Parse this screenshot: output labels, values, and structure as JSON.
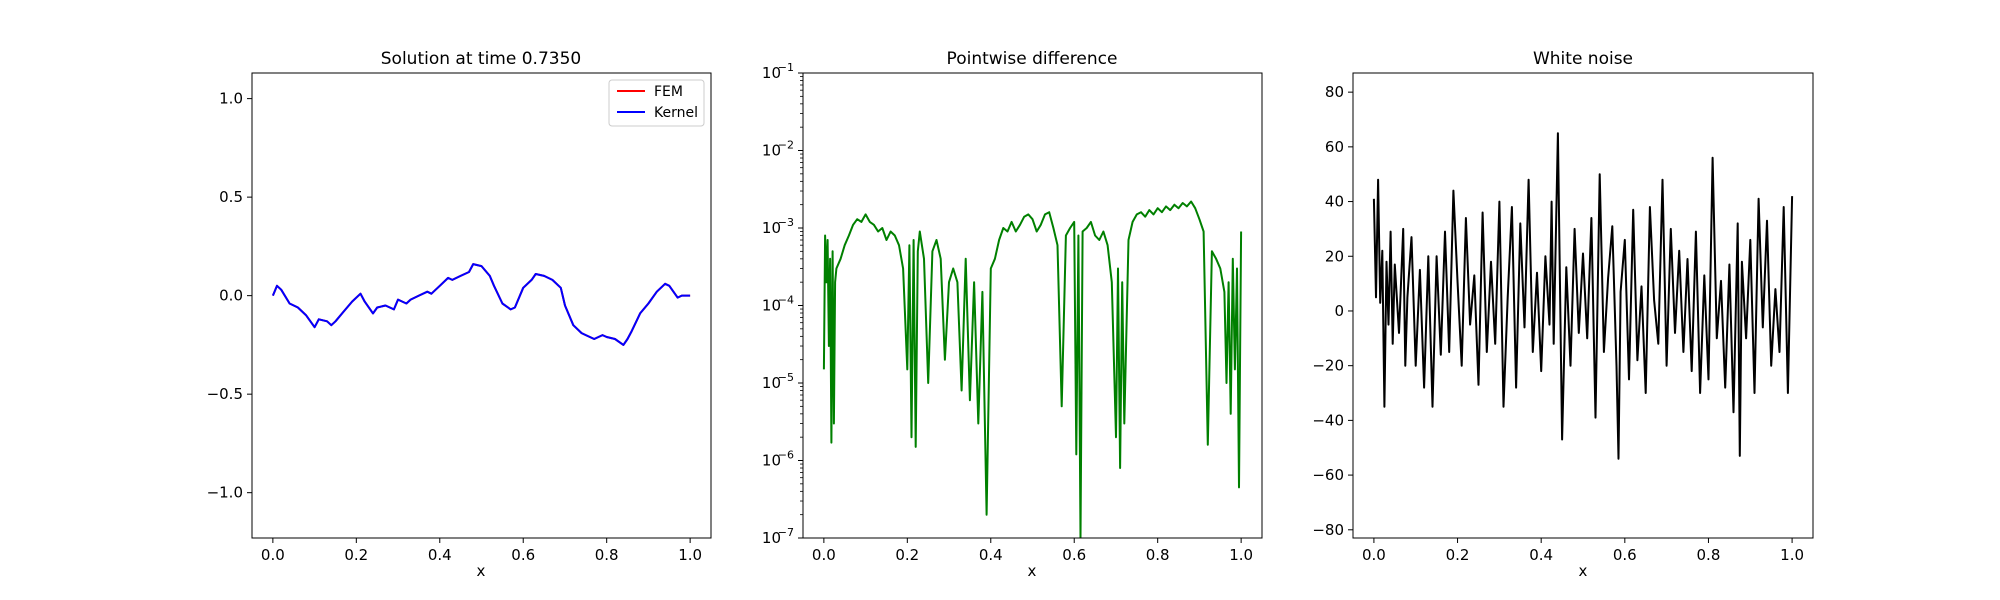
{
  "chart_data": [
    {
      "type": "line",
      "title": "Solution at time 0.7350",
      "xlabel": "x",
      "ylabel": "",
      "xlim": [
        -0.05,
        1.05
      ],
      "ylim": [
        -1.23,
        1.13
      ],
      "xticks": [
        0.0,
        0.2,
        0.4,
        0.6,
        0.8,
        1.0
      ],
      "xtick_labels": [
        "0.0",
        "0.2",
        "0.4",
        "0.6",
        "0.8",
        "1.0"
      ],
      "yticks": [
        -1.0,
        -0.5,
        0.0,
        0.5,
        1.0
      ],
      "ytick_labels": [
        "−1.0",
        "−0.5",
        "0.0",
        "0.5",
        "1.0"
      ],
      "legend": "top-right",
      "grid": false,
      "series": [
        {
          "name": "FEM",
          "color": "#ff0000",
          "x": [
            0.0,
            0.01,
            0.02,
            0.04,
            0.06,
            0.08,
            0.1,
            0.11,
            0.13,
            0.14,
            0.15,
            0.17,
            0.19,
            0.21,
            0.22,
            0.24,
            0.25,
            0.27,
            0.29,
            0.3,
            0.32,
            0.33,
            0.35,
            0.37,
            0.38,
            0.4,
            0.42,
            0.43,
            0.45,
            0.47,
            0.48,
            0.5,
            0.52,
            0.53,
            0.55,
            0.57,
            0.58,
            0.6,
            0.62,
            0.63,
            0.65,
            0.67,
            0.69,
            0.7,
            0.72,
            0.74,
            0.75,
            0.77,
            0.79,
            0.8,
            0.82,
            0.84,
            0.85,
            0.86,
            0.88,
            0.9,
            0.92,
            0.94,
            0.95,
            0.97,
            0.98,
            1.0
          ],
          "y": [
            0.0,
            0.05,
            0.03,
            -0.04,
            -0.06,
            -0.1,
            -0.16,
            -0.12,
            -0.13,
            -0.15,
            -0.13,
            -0.08,
            -0.03,
            0.01,
            -0.03,
            -0.09,
            -0.06,
            -0.05,
            -0.07,
            -0.02,
            -0.04,
            -0.02,
            0.0,
            0.02,
            0.01,
            0.05,
            0.09,
            0.08,
            0.1,
            0.12,
            0.16,
            0.15,
            0.1,
            0.05,
            -0.04,
            -0.07,
            -0.06,
            0.04,
            0.08,
            0.11,
            0.1,
            0.08,
            0.04,
            -0.05,
            -0.15,
            -0.19,
            -0.2,
            -0.22,
            -0.2,
            -0.21,
            -0.22,
            -0.25,
            -0.22,
            -0.18,
            -0.09,
            -0.04,
            0.02,
            0.06,
            0.05,
            -0.01,
            0.0,
            0.0
          ]
        },
        {
          "name": "Kernel",
          "color": "#0000ff",
          "x": [
            0.0,
            0.01,
            0.02,
            0.04,
            0.06,
            0.08,
            0.1,
            0.11,
            0.13,
            0.14,
            0.15,
            0.17,
            0.19,
            0.21,
            0.22,
            0.24,
            0.25,
            0.27,
            0.29,
            0.3,
            0.32,
            0.33,
            0.35,
            0.37,
            0.38,
            0.4,
            0.42,
            0.43,
            0.45,
            0.47,
            0.48,
            0.5,
            0.52,
            0.53,
            0.55,
            0.57,
            0.58,
            0.6,
            0.62,
            0.63,
            0.65,
            0.67,
            0.69,
            0.7,
            0.72,
            0.74,
            0.75,
            0.77,
            0.79,
            0.8,
            0.82,
            0.84,
            0.85,
            0.86,
            0.88,
            0.9,
            0.92,
            0.94,
            0.95,
            0.97,
            0.98,
            1.0
          ],
          "y": [
            0.0,
            0.05,
            0.03,
            -0.04,
            -0.06,
            -0.1,
            -0.16,
            -0.12,
            -0.13,
            -0.15,
            -0.13,
            -0.08,
            -0.03,
            0.01,
            -0.03,
            -0.09,
            -0.06,
            -0.05,
            -0.07,
            -0.02,
            -0.04,
            -0.02,
            0.0,
            0.02,
            0.01,
            0.05,
            0.09,
            0.08,
            0.1,
            0.12,
            0.16,
            0.15,
            0.1,
            0.05,
            -0.04,
            -0.07,
            -0.06,
            0.04,
            0.08,
            0.11,
            0.1,
            0.08,
            0.04,
            -0.05,
            -0.15,
            -0.19,
            -0.2,
            -0.22,
            -0.2,
            -0.21,
            -0.22,
            -0.25,
            -0.22,
            -0.18,
            -0.09,
            -0.04,
            0.02,
            0.06,
            0.05,
            -0.01,
            0.0,
            0.0
          ]
        }
      ]
    },
    {
      "type": "line",
      "title": "Pointwise difference",
      "xlabel": "x",
      "ylabel": "",
      "xlim": [
        -0.05,
        1.05
      ],
      "ylim": [
        1e-07,
        0.1
      ],
      "yscale": "log",
      "xticks": [
        0.0,
        0.2,
        0.4,
        0.6,
        0.8,
        1.0
      ],
      "xtick_labels": [
        "0.0",
        "0.2",
        "0.4",
        "0.6",
        "0.8",
        "1.0"
      ],
      "yticks": [
        1e-07,
        1e-06,
        1e-05,
        0.0001,
        0.001,
        0.01,
        0.1
      ],
      "ytick_labels": [
        {
          "base": "10",
          "exp": "−7"
        },
        {
          "base": "10",
          "exp": "−6"
        },
        {
          "base": "10",
          "exp": "−5"
        },
        {
          "base": "10",
          "exp": "−4"
        },
        {
          "base": "10",
          "exp": "−3"
        },
        {
          "base": "10",
          "exp": "−2"
        },
        {
          "base": "10",
          "exp": "−1"
        }
      ],
      "grid": false,
      "series": [
        {
          "color": "#008000",
          "x": [
            0.0,
            0.003,
            0.006,
            0.009,
            0.012,
            0.015,
            0.018,
            0.021,
            0.024,
            0.027,
            0.03,
            0.04,
            0.05,
            0.06,
            0.07,
            0.08,
            0.09,
            0.1,
            0.11,
            0.12,
            0.13,
            0.14,
            0.15,
            0.16,
            0.17,
            0.18,
            0.19,
            0.2,
            0.205,
            0.21,
            0.215,
            0.22,
            0.225,
            0.23,
            0.24,
            0.25,
            0.26,
            0.27,
            0.28,
            0.29,
            0.3,
            0.31,
            0.32,
            0.33,
            0.34,
            0.35,
            0.36,
            0.37,
            0.38,
            0.39,
            0.4,
            0.41,
            0.42,
            0.43,
            0.44,
            0.45,
            0.46,
            0.47,
            0.48,
            0.49,
            0.5,
            0.51,
            0.52,
            0.53,
            0.54,
            0.55,
            0.56,
            0.57,
            0.58,
            0.59,
            0.6,
            0.605,
            0.61,
            0.615,
            0.62,
            0.63,
            0.64,
            0.65,
            0.66,
            0.67,
            0.68,
            0.69,
            0.7,
            0.705,
            0.71,
            0.715,
            0.72,
            0.73,
            0.74,
            0.75,
            0.76,
            0.77,
            0.78,
            0.79,
            0.8,
            0.81,
            0.82,
            0.83,
            0.84,
            0.85,
            0.86,
            0.87,
            0.88,
            0.89,
            0.9,
            0.91,
            0.92,
            0.93,
            0.94,
            0.95,
            0.96,
            0.965,
            0.97,
            0.975,
            0.98,
            0.985,
            0.99,
            0.995,
            1.0
          ],
          "y": [
            1.5e-05,
            0.0008,
            0.0002,
            0.0007,
            3e-05,
            0.0004,
            1.7e-06,
            0.0005,
            3e-06,
            0.0002,
            0.0003,
            0.0004,
            0.0006,
            0.0008,
            0.0011,
            0.0013,
            0.0012,
            0.0015,
            0.0012,
            0.0011,
            0.0009,
            0.001,
            0.0007,
            0.0009,
            0.0008,
            0.0006,
            0.0003,
            1.5e-05,
            0.0006,
            2e-06,
            0.0007,
            1.5e-06,
            0.0005,
            0.0009,
            0.0004,
            1e-05,
            0.0005,
            0.0007,
            0.0004,
            2e-05,
            0.0002,
            0.0003,
            0.0002,
            8e-06,
            0.0004,
            6e-06,
            0.0002,
            3e-06,
            0.00015,
            2e-07,
            0.0003,
            0.0004,
            0.0007,
            0.001,
            0.0009,
            0.0012,
            0.0009,
            0.0011,
            0.0014,
            0.0015,
            0.0013,
            0.0009,
            0.0011,
            0.0015,
            0.0016,
            0.001,
            0.0006,
            5e-06,
            0.0008,
            0.001,
            0.0012,
            1.2e-06,
            0.0008,
            1e-07,
            0.0009,
            0.001,
            0.0012,
            0.0008,
            0.0007,
            0.0009,
            0.0006,
            0.0002,
            2e-06,
            0.0003,
            8e-07,
            0.0002,
            3e-06,
            0.0007,
            0.0012,
            0.0015,
            0.0016,
            0.0014,
            0.0017,
            0.0015,
            0.0018,
            0.0016,
            0.0019,
            0.0017,
            0.002,
            0.0018,
            0.0021,
            0.0019,
            0.0022,
            0.0018,
            0.0013,
            0.0009,
            1.6e-06,
            0.0005,
            0.0004,
            0.0003,
            0.00015,
            1e-05,
            0.0002,
            4e-06,
            0.0004,
            1.5e-05,
            0.0003,
            4.5e-07,
            0.0009
          ]
        }
      ]
    },
    {
      "type": "line",
      "title": "White noise",
      "xlabel": "x",
      "ylabel": "",
      "xlim": [
        -0.05,
        1.05
      ],
      "ylim": [
        -83,
        87
      ],
      "xticks": [
        0.0,
        0.2,
        0.4,
        0.6,
        0.8,
        1.0
      ],
      "xtick_labels": [
        "0.0",
        "0.2",
        "0.4",
        "0.6",
        "0.8",
        "1.0"
      ],
      "yticks": [
        -80,
        -60,
        -40,
        -20,
        0,
        20,
        40,
        60,
        80
      ],
      "ytick_labels": [
        "−80",
        "−60",
        "−40",
        "−20",
        "0",
        "20",
        "40",
        "60",
        "80"
      ],
      "grid": false,
      "series": [
        {
          "color": "#000000",
          "x": [
            0.0,
            0.005,
            0.01,
            0.015,
            0.02,
            0.025,
            0.03,
            0.035,
            0.04,
            0.045,
            0.05,
            0.06,
            0.07,
            0.075,
            0.08,
            0.09,
            0.1,
            0.11,
            0.12,
            0.13,
            0.14,
            0.15,
            0.16,
            0.17,
            0.18,
            0.19,
            0.2,
            0.21,
            0.22,
            0.23,
            0.24,
            0.25,
            0.26,
            0.27,
            0.28,
            0.29,
            0.3,
            0.31,
            0.32,
            0.33,
            0.34,
            0.35,
            0.36,
            0.37,
            0.38,
            0.39,
            0.4,
            0.41,
            0.42,
            0.425,
            0.43,
            0.44,
            0.45,
            0.46,
            0.47,
            0.48,
            0.49,
            0.5,
            0.51,
            0.52,
            0.53,
            0.54,
            0.55,
            0.56,
            0.57,
            0.58,
            0.585,
            0.59,
            0.6,
            0.61,
            0.62,
            0.63,
            0.64,
            0.65,
            0.66,
            0.67,
            0.68,
            0.69,
            0.7,
            0.71,
            0.72,
            0.73,
            0.74,
            0.75,
            0.76,
            0.77,
            0.78,
            0.79,
            0.8,
            0.81,
            0.82,
            0.83,
            0.84,
            0.85,
            0.86,
            0.87,
            0.875,
            0.88,
            0.89,
            0.9,
            0.91,
            0.92,
            0.93,
            0.94,
            0.95,
            0.96,
            0.97,
            0.98,
            0.99,
            1.0
          ],
          "y": [
            41,
            5,
            48,
            3,
            22,
            -35,
            18,
            -5,
            29,
            -12,
            17,
            -8,
            30,
            -20,
            5,
            27,
            -20,
            15,
            -28,
            20,
            -35,
            20,
            -16,
            29,
            -15,
            44,
            11,
            -20,
            34,
            -5,
            13,
            -27,
            36,
            -15,
            18,
            -12,
            40,
            -35,
            5,
            38,
            -28,
            32,
            -6,
            48,
            -15,
            14,
            -22,
            20,
            -5,
            40,
            -12,
            65,
            -47,
            16,
            -20,
            30,
            -8,
            21,
            -10,
            34,
            -39,
            50,
            -15,
            12,
            31,
            -20,
            -54,
            7,
            26,
            -25,
            37,
            -18,
            9,
            -30,
            38,
            4,
            -12,
            48,
            -20,
            30,
            -8,
            22,
            -15,
            19,
            -22,
            29,
            -30,
            13,
            -25,
            56,
            -10,
            11,
            -28,
            17,
            -37,
            32,
            -53,
            18,
            -10,
            26,
            -30,
            41,
            -6,
            33,
            -20,
            8,
            -15,
            38,
            -30,
            42
          ]
        }
      ]
    }
  ]
}
